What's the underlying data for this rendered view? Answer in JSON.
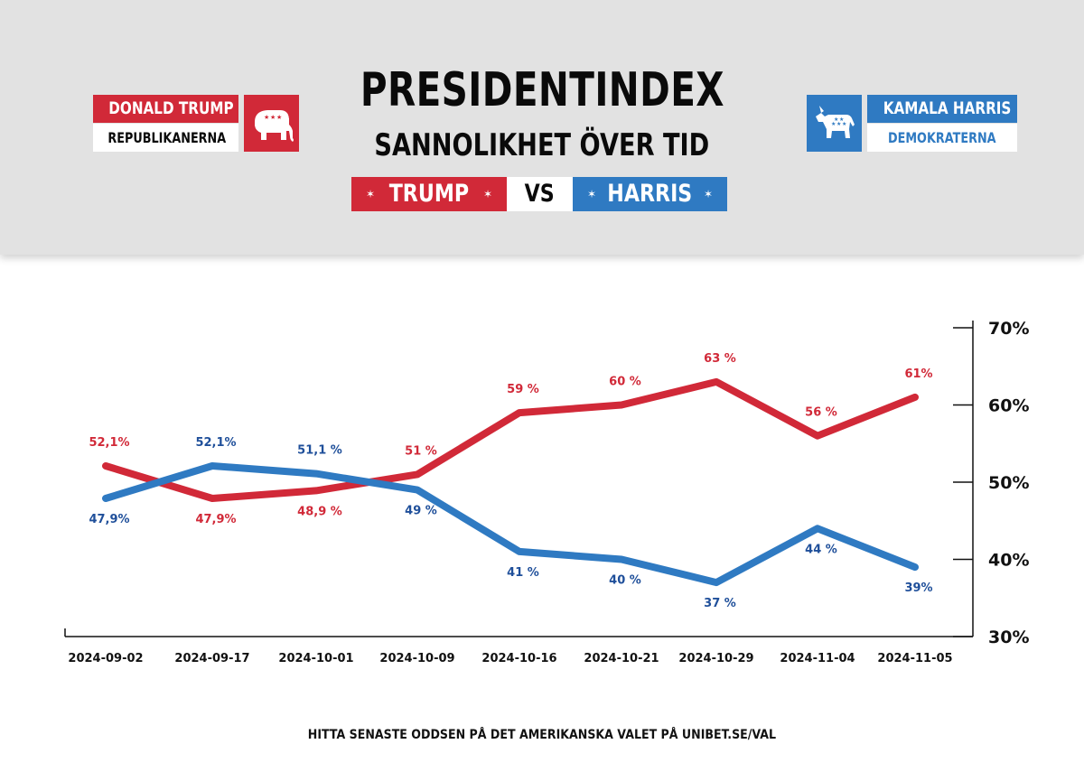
{
  "header": {
    "title": "PRESIDENTINDEX",
    "subtitle": "SANNOLIKHET ÖVER TID",
    "vs": {
      "left": "TRUMP",
      "middle": "VS",
      "right": "HARRIS"
    }
  },
  "candidates": {
    "republican": {
      "name": "DONALD TRUMP",
      "party": "REPUBLIKANERNA",
      "icon": "elephant-icon"
    },
    "democrat": {
      "name": "KAMALA HARRIS",
      "party": "DEMOKRATERNA",
      "icon": "donkey-icon"
    }
  },
  "footer": "HITTA SENASTE ODDSEN PÅ DET AMERIKANSKA VALET PÅ UNIBET.SE/VAL",
  "colors": {
    "red": "#d12938",
    "blue": "#2f7ac2",
    "dark_blue": "#1f4f9a",
    "header_bg": "#e2e2e2"
  },
  "chart_data": {
    "type": "line",
    "categories": [
      "2024-09-02",
      "2024-09-17",
      "2024-10-01",
      "2024-10-09",
      "2024-10-16",
      "2024-10-21",
      "2024-10-29",
      "2024-11-04",
      "2024-11-05"
    ],
    "series": [
      {
        "name": "TRUMP",
        "color": "#d12938",
        "values": [
          52.1,
          47.9,
          48.9,
          51,
          59,
          60,
          63,
          56,
          61
        ],
        "labels": [
          "52,1%",
          "47,9%",
          "48,9 %",
          "51 %",
          "59 %",
          "60 %",
          "63 %",
          "56 %",
          "61%"
        ]
      },
      {
        "name": "HARRIS",
        "color": "#2f7ac2",
        "values": [
          47.9,
          52.1,
          51.1,
          49,
          41,
          40,
          37,
          44,
          39
        ],
        "labels": [
          "47,9%",
          "52,1%",
          "51,1 %",
          "49 %",
          "41 %",
          "40 %",
          "37 %",
          "44 %",
          "39%"
        ]
      }
    ],
    "yticks": [
      "30%",
      "40%",
      "50%",
      "60%",
      "70%"
    ],
    "ylim": [
      30,
      70
    ],
    "axis_position": "right",
    "grid": false,
    "xlabel": "",
    "ylabel": ""
  }
}
